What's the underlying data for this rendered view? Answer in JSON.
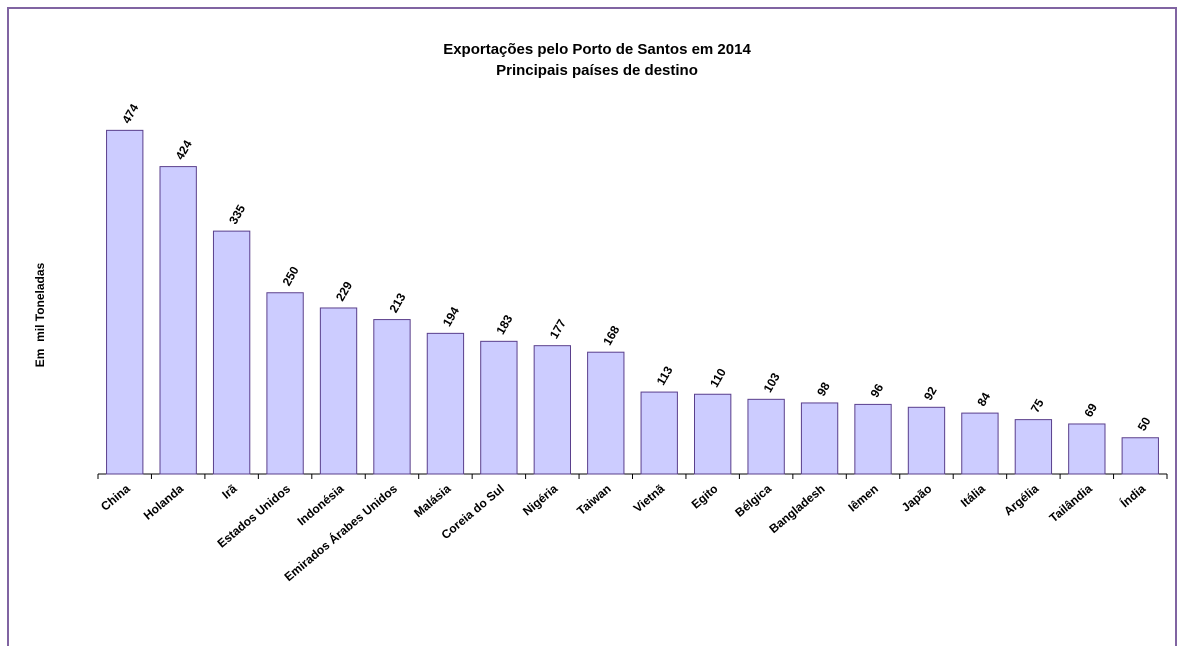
{
  "chart_data": {
    "type": "bar",
    "title": "Exportações pelo Porto de Santos em 2014",
    "subtitle": "Principais países de destino",
    "y_label": "Em  mil Toneladas",
    "categories": [
      "China",
      "Holanda",
      "Irã",
      "Estados Unidos",
      "Indonésia",
      "Emirados Árabes Unidos",
      "Malásia",
      "Coreia do Sul",
      "Nigéria",
      "Taiwan",
      "Vietnã",
      "Egito",
      "Bélgica",
      "Bangladesh",
      "Iêmen",
      "Japão",
      "Itália",
      "Argélia",
      "Tailândia",
      "Índia"
    ],
    "values": [
      474,
      424,
      335,
      250,
      229,
      213,
      194,
      183,
      177,
      168,
      113,
      110,
      103,
      98,
      96,
      92,
      84,
      75,
      69,
      50
    ],
    "color": "#ccccff",
    "ylim": [
      0,
      520
    ]
  }
}
